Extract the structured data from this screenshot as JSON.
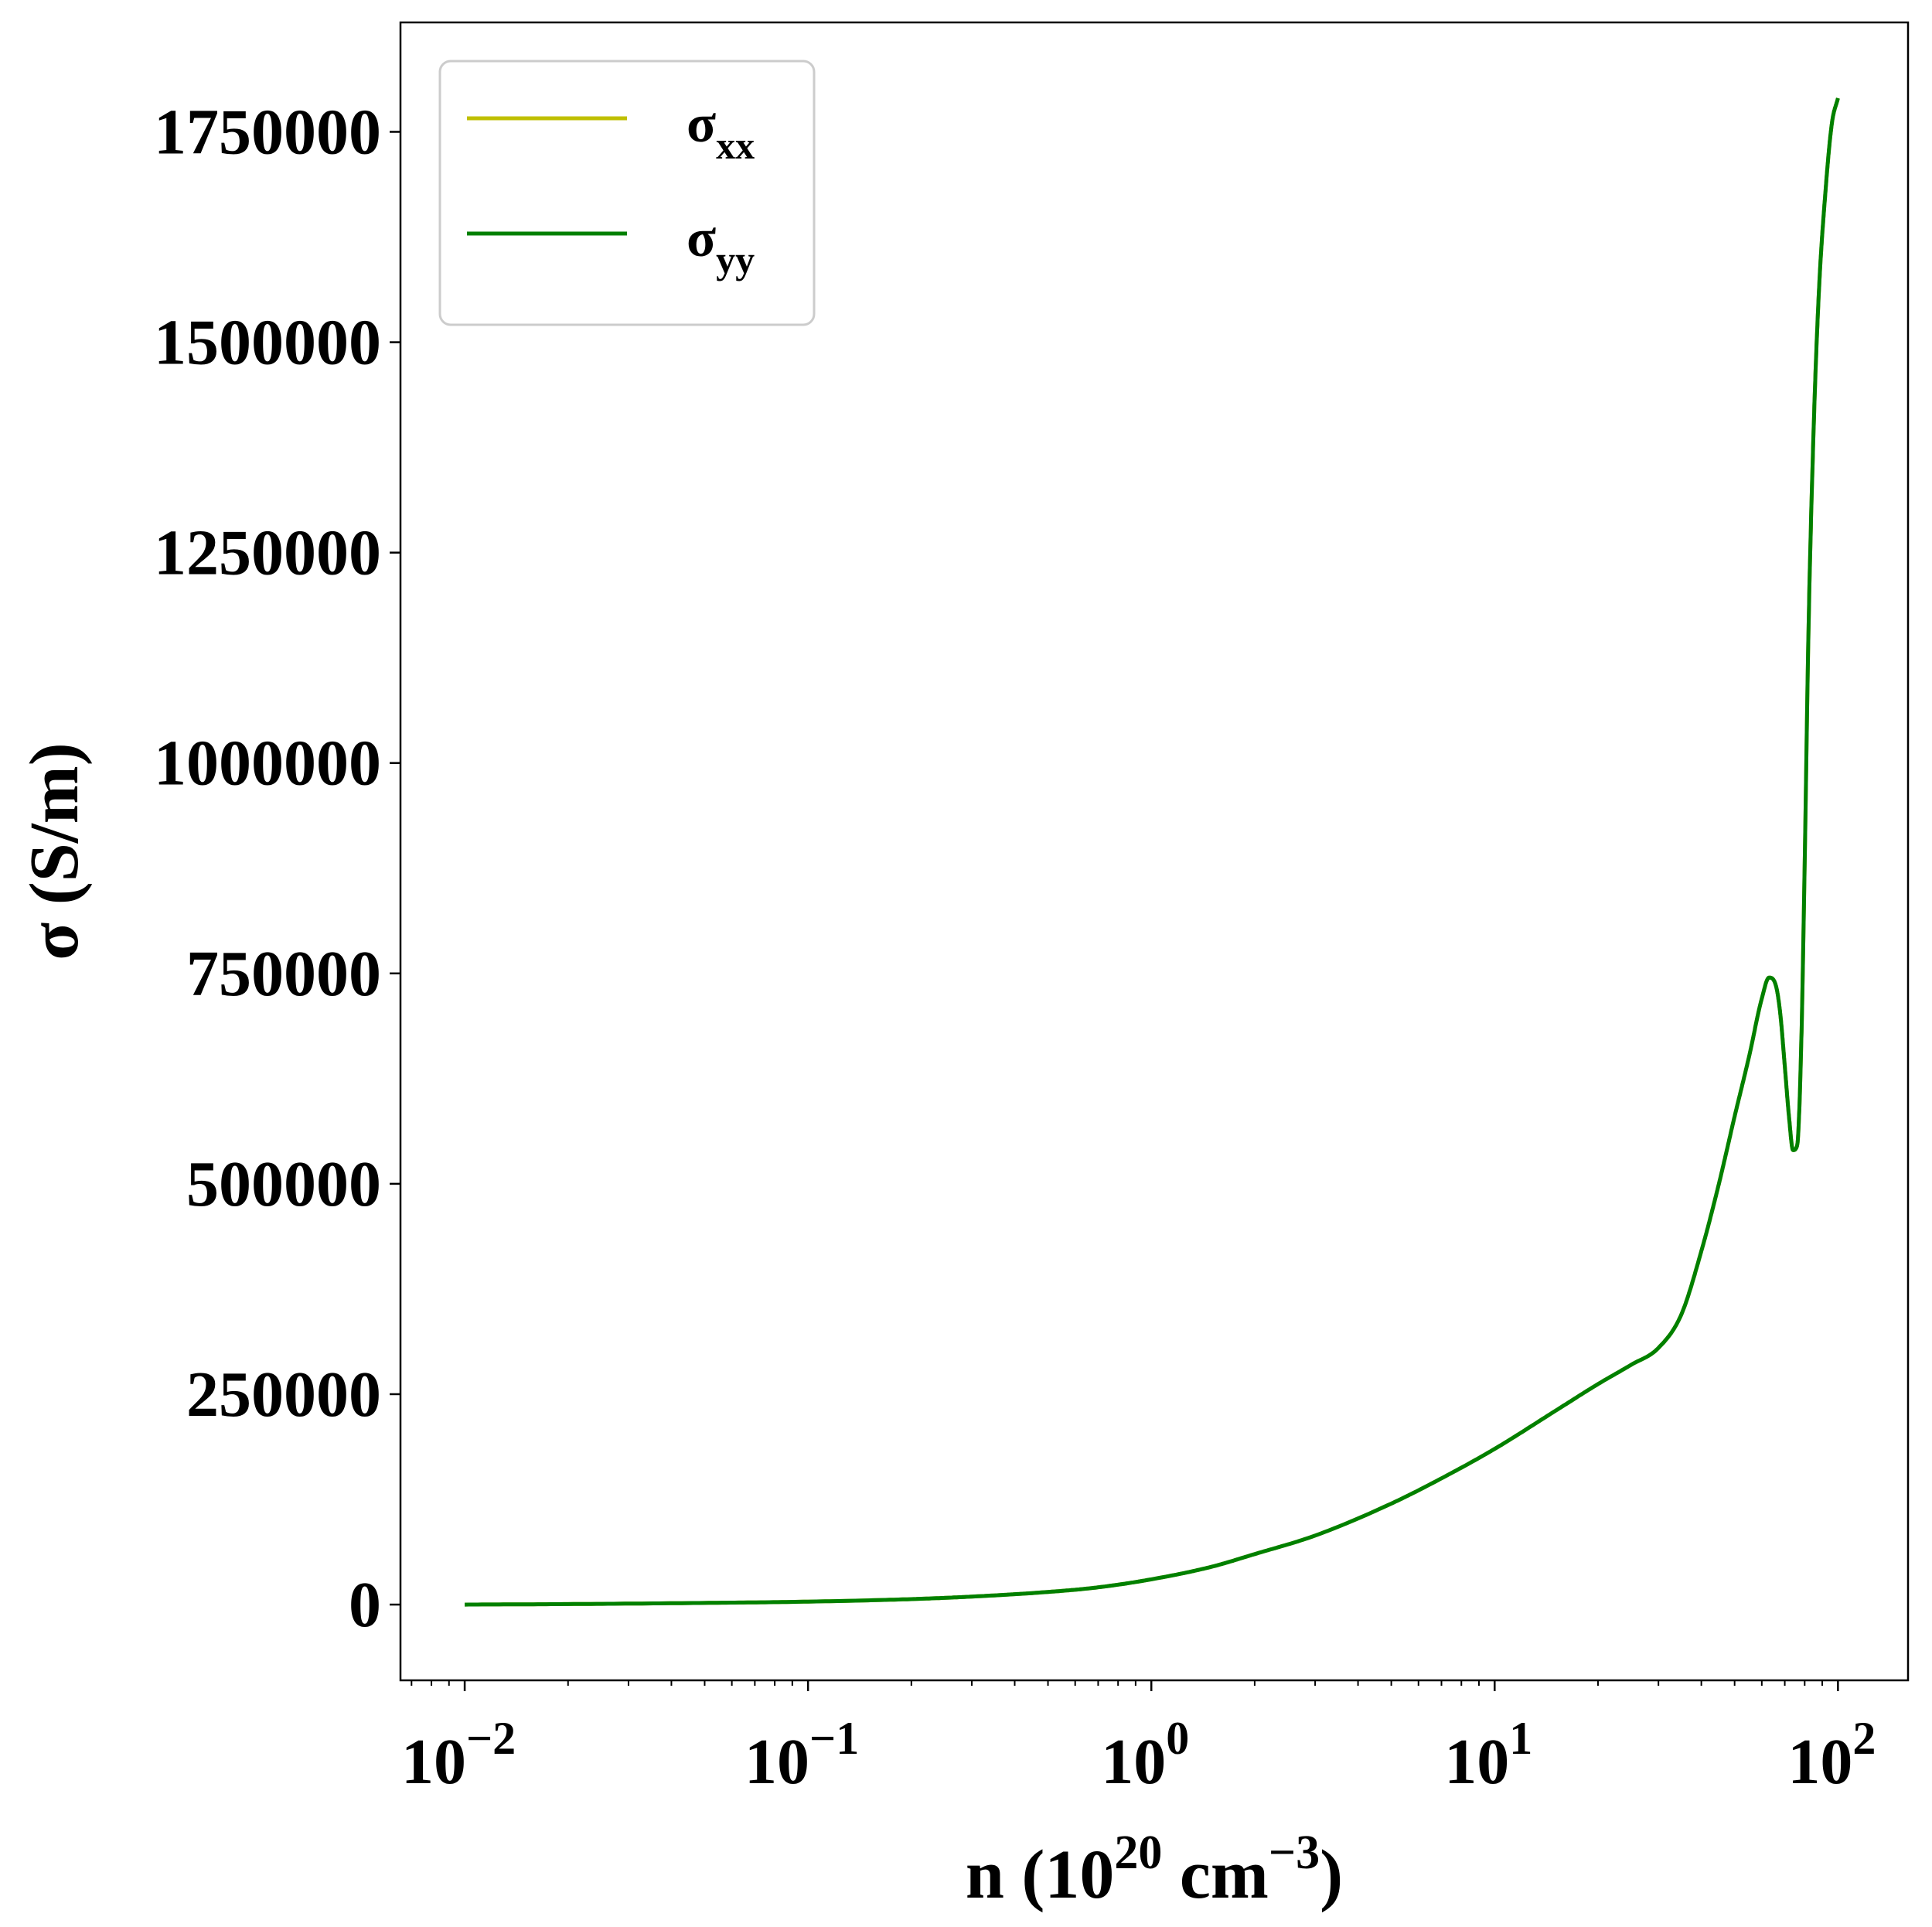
{
  "chart_data": {
    "type": "line",
    "xscale": "log",
    "xlabel_parts": [
      "n (10",
      "20",
      " cm",
      "−3",
      ")"
    ],
    "ylabel": "σ (S/m)",
    "xlim": [
      0.0065,
      160
    ],
    "ylim": [
      -90000,
      1880000
    ],
    "x_tick_labels": [
      {
        "x": 0.01,
        "base": "10",
        "exp": "−2"
      },
      {
        "x": 0.1,
        "base": "10",
        "exp": "−1"
      },
      {
        "x": 1,
        "base": "10",
        "exp": "0"
      },
      {
        "x": 10,
        "base": "10",
        "exp": "1"
      },
      {
        "x": 100,
        "base": "10",
        "exp": "2"
      }
    ],
    "y_tick_labels": [
      {
        "y": 0,
        "label": "0"
      },
      {
        "y": 250000,
        "label": "250000"
      },
      {
        "y": 500000,
        "label": "500000"
      },
      {
        "y": 750000,
        "label": "750000"
      },
      {
        "y": 1000000,
        "label": "1000000"
      },
      {
        "y": 1250000,
        "label": "1250000"
      },
      {
        "y": 1500000,
        "label": "1500000"
      },
      {
        "y": 1750000,
        "label": "1750000"
      }
    ],
    "grid": false,
    "legend_position": "top-left",
    "series": [
      {
        "name_base": "σ",
        "name_sub": "xx",
        "color": "#bfbf00",
        "x": [
          0.01,
          0.02,
          0.05,
          0.1,
          0.2,
          0.3,
          0.5,
          0.7,
          1,
          1.5,
          2,
          3,
          5,
          7,
          10,
          15,
          20,
          25,
          30,
          35,
          40,
          45,
          50,
          55,
          60,
          63,
          66,
          68,
          70,
          72,
          74,
          76,
          78,
          80,
          82,
          85,
          88,
          92,
          96,
          100
        ],
        "y": [
          0,
          600,
          2000,
          3500,
          6500,
          9500,
          15000,
          20500,
          30000,
          45000,
          60000,
          82000,
          120000,
          150000,
          185000,
          230000,
          262000,
          285000,
          305000,
          345000,
          420000,
          500000,
          580000,
          650000,
          720000,
          745000,
          735000,
          700000,
          640000,
          580000,
          540000,
          545000,
          650000,
          880000,
          1150000,
          1400000,
          1560000,
          1680000,
          1760000,
          1790000
        ]
      },
      {
        "name_base": "σ",
        "name_sub": "yy",
        "color": "#008000",
        "x": [
          0.01,
          0.02,
          0.05,
          0.1,
          0.2,
          0.3,
          0.5,
          0.7,
          1,
          1.5,
          2,
          3,
          5,
          7,
          10,
          15,
          20,
          25,
          30,
          35,
          40,
          45,
          50,
          55,
          60,
          63,
          66,
          68,
          70,
          72,
          74,
          76,
          78,
          80,
          82,
          85,
          88,
          92,
          96,
          100
        ],
        "y": [
          0,
          600,
          2000,
          3500,
          6500,
          9500,
          15000,
          20500,
          30000,
          45000,
          60000,
          82000,
          120000,
          150000,
          185000,
          230000,
          262000,
          285000,
          305000,
          345000,
          420000,
          500000,
          580000,
          650000,
          720000,
          745000,
          735000,
          700000,
          640000,
          580000,
          540000,
          545000,
          650000,
          880000,
          1150000,
          1400000,
          1560000,
          1680000,
          1760000,
          1790000
        ]
      }
    ]
  }
}
